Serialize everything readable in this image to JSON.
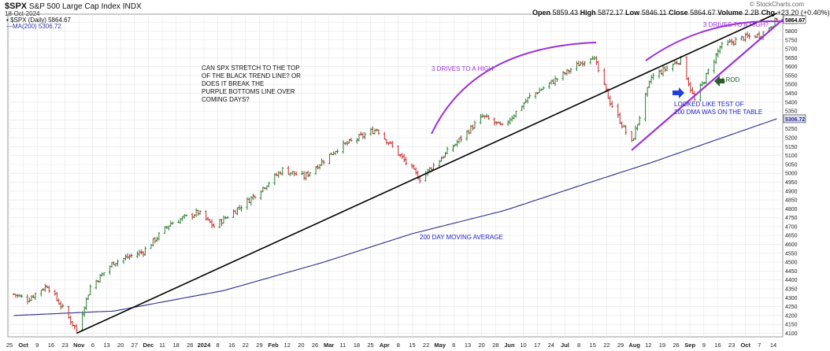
{
  "header": {
    "symbol": "$SPX",
    "name": "S&P 500 Large Cap Index",
    "exchange": "INDX",
    "date": "18-Oct-2024",
    "open_label": "Open",
    "open": "5859.43",
    "high_label": "High",
    "high": "5872.17",
    "low_label": "Low",
    "low": "5846.11",
    "close_label": "Close",
    "close": "5864.67",
    "volume_label": "Volume",
    "volume": "2.2B",
    "chg_label": "Chg",
    "chg": "+23.20 (+0.40%)",
    "source": "© StockCharts.com",
    "legend_price": "$SPX (Daily) 5864.67",
    "legend_ma": "MA(200) 5306.72"
  },
  "annotations": {
    "question": [
      "CAN SPX STRETCH TO THE TOP",
      "OF THE BLACK TREND LINE? OR",
      "DOES IT BREAK THE",
      "PURPLE BOTTOMS LINE OVER",
      "COMING DAYS?"
    ],
    "drives1": "3 DRIVES TO A HIGH",
    "drives2": "3 DRIVES TO A HIGH?",
    "lrod": "LROD",
    "retest": [
      "LOOKED LIKE TEST OF",
      "200 DMA WAS ON THE TABLE"
    ],
    "ma_label": "200 DAY MOVING AVERAGE"
  },
  "colors": {
    "up": "#2e7d32",
    "down": "#c62828",
    "ma": "#2b2b8c",
    "trend": "#000000",
    "purple": "#9b30d9",
    "annotation_blue": "#2222cc",
    "grid": "#e6e6e6"
  },
  "chart_data": {
    "type": "ohlc",
    "y_ticks": [
      4100,
      4150,
      4200,
      4250,
      4300,
      4350,
      4400,
      4450,
      4500,
      4550,
      4600,
      4650,
      4700,
      4750,
      4800,
      4850,
      4900,
      4950,
      5000,
      5050,
      5100,
      5150,
      5200,
      5250,
      5300,
      5350,
      5400,
      5450,
      5500,
      5550,
      5600,
      5650,
      5700,
      5750,
      5800,
      5850
    ],
    "ylim": [
      4080,
      5895
    ],
    "last_price_label": "5864.67",
    "ma_price_label": "5306.72",
    "x_ticks": [
      "25",
      "Oct",
      "9",
      "16",
      "23",
      "Nov",
      "6",
      "13",
      "20",
      "27",
      "Dec",
      "11",
      "18",
      "26",
      "2024",
      "8",
      "16",
      "22",
      "29",
      "Feb",
      "12",
      "20",
      "26",
      "Mar",
      "11",
      "18",
      "25",
      "Apr",
      "8",
      "15",
      "22",
      "May",
      "6",
      "13",
      "20",
      "28",
      "Jun",
      "10",
      "17",
      "24",
      "Jul",
      "8",
      "15",
      "22",
      "29",
      "Aug",
      "12",
      "19",
      "26",
      "Sep",
      "9",
      "16",
      "23",
      "Oct",
      "7",
      "14"
    ],
    "x_tick_major": [
      "Oct",
      "Nov",
      "Dec",
      "2024",
      "Feb",
      "Mar",
      "Apr",
      "May",
      "Jun",
      "Jul",
      "Aug",
      "Sep",
      "Oct"
    ],
    "price_keypoints": [
      [
        "2023-09-25",
        4320
      ],
      [
        "2023-10-02",
        4290
      ],
      [
        "2023-10-12",
        4370
      ],
      [
        "2023-10-20",
        4240
      ],
      [
        "2023-10-27",
        4117
      ],
      [
        "2023-11-03",
        4360
      ],
      [
        "2023-11-15",
        4500
      ],
      [
        "2023-11-30",
        4560
      ],
      [
        "2023-12-14",
        4720
      ],
      [
        "2023-12-28",
        4780
      ],
      [
        "2024-01-05",
        4700
      ],
      [
        "2024-01-24",
        4860
      ],
      [
        "2024-02-09",
        5020
      ],
      [
        "2024-02-20",
        4980
      ],
      [
        "2024-03-08",
        5140
      ],
      [
        "2024-03-28",
        5250
      ],
      [
        "2024-04-19",
        4970
      ],
      [
        "2024-05-03",
        5120
      ],
      [
        "2024-05-21",
        5320
      ],
      [
        "2024-05-31",
        5260
      ],
      [
        "2024-06-14",
        5430
      ],
      [
        "2024-07-16",
        5665
      ],
      [
        "2024-07-25",
        5400
      ],
      [
        "2024-08-05",
        5170
      ],
      [
        "2024-08-15",
        5540
      ],
      [
        "2024-08-30",
        5640
      ],
      [
        "2024-09-06",
        5410
      ],
      [
        "2024-09-19",
        5710
      ],
      [
        "2024-09-30",
        5760
      ],
      [
        "2024-10-10",
        5780
      ],
      [
        "2024-10-18",
        5864.67
      ]
    ],
    "ma200_keypoints": [
      [
        "2023-09-25",
        4200
      ],
      [
        "2023-11-15",
        4225
      ],
      [
        "2024-01-10",
        4340
      ],
      [
        "2024-03-01",
        4500
      ],
      [
        "2024-04-15",
        4660
      ],
      [
        "2024-06-01",
        4790
      ],
      [
        "2024-07-15",
        4950
      ],
      [
        "2024-08-15",
        5060
      ],
      [
        "2024-09-15",
        5180
      ],
      [
        "2024-10-18",
        5306.72
      ]
    ],
    "black_trendline": [
      [
        "2023-10-27",
        4100
      ],
      [
        "2024-10-18",
        5900
      ]
    ],
    "purple_bottoms_line": [
      [
        "2024-08-05",
        5130
      ],
      [
        "2024-10-18",
        5840
      ]
    ]
  }
}
